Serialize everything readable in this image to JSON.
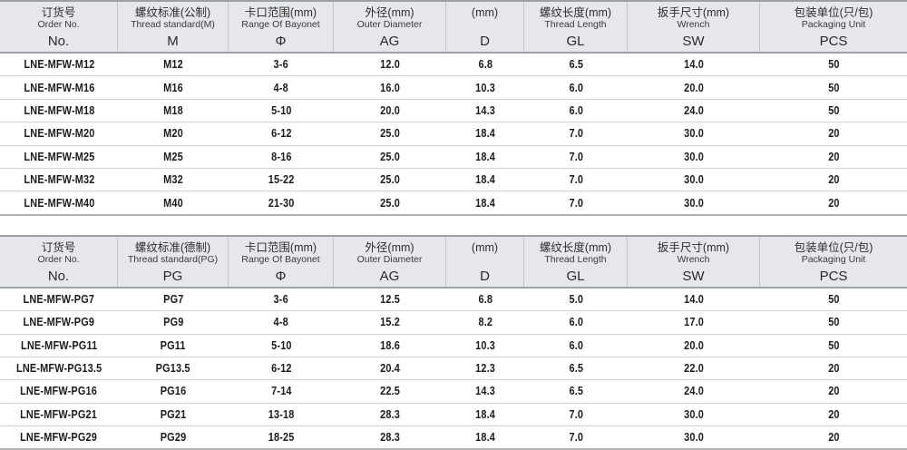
{
  "colors": {
    "header_bg": "#e5e7eb",
    "border_strong": "#9aa0a6",
    "row_divider": "#cdd0d4",
    "table_bottom": "#aeb2b7",
    "text": "#1c1c1c"
  },
  "tables": [
    {
      "id": "metric",
      "columns": [
        {
          "cn": "订货号",
          "en": "Order No.",
          "sym": "No."
        },
        {
          "cn": "螺纹标准(公制)",
          "en": "Thread standard(M)",
          "sym": "M"
        },
        {
          "cn": "卡口范围(mm)",
          "en": "Range Of Bayonet",
          "sym": "Φ"
        },
        {
          "cn": "外径(mm)",
          "en": "Outer Diameter",
          "sym": "AG"
        },
        {
          "cn": "(mm)",
          "en": "",
          "sym": "D"
        },
        {
          "cn": "螺纹长度(mm)",
          "en": "Thread Length",
          "sym": "GL"
        },
        {
          "cn": "扳手尺寸(mm)",
          "en": "Wrench",
          "sym": "SW"
        },
        {
          "cn": "包装单位(只/包)",
          "en": "Packaging Unit",
          "sym": "PCS"
        }
      ],
      "rows": [
        [
          "LNE-MFW-M12",
          "M12",
          "3-6",
          "12.0",
          "6.8",
          "6.5",
          "14.0",
          "50"
        ],
        [
          "LNE-MFW-M16",
          "M16",
          "4-8",
          "16.0",
          "10.3",
          "6.0",
          "20.0",
          "50"
        ],
        [
          "LNE-MFW-M18",
          "M18",
          "5-10",
          "20.0",
          "14.3",
          "6.0",
          "24.0",
          "50"
        ],
        [
          "LNE-MFW-M20",
          "M20",
          "6-12",
          "25.0",
          "18.4",
          "7.0",
          "30.0",
          "20"
        ],
        [
          "LNE-MFW-M25",
          "M25",
          "8-16",
          "25.0",
          "18.4",
          "7.0",
          "30.0",
          "20"
        ],
        [
          "LNE-MFW-M32",
          "M32",
          "15-22",
          "25.0",
          "18.4",
          "7.0",
          "30.0",
          "20"
        ],
        [
          "LNE-MFW-M40",
          "M40",
          "21-30",
          "25.0",
          "18.4",
          "7.0",
          "30.0",
          "20"
        ]
      ]
    },
    {
      "id": "pg",
      "columns": [
        {
          "cn": "订货号",
          "en": "Order No.",
          "sym": "No."
        },
        {
          "cn": "螺纹标准(德制)",
          "en": "Thread standard(PG)",
          "sym": "PG"
        },
        {
          "cn": "卡口范围(mm)",
          "en": "Range Of Bayonet",
          "sym": "Φ"
        },
        {
          "cn": "外径(mm)",
          "en": "Outer Diameter",
          "sym": "AG"
        },
        {
          "cn": "(mm)",
          "en": "",
          "sym": "D"
        },
        {
          "cn": "螺纹长度(mm)",
          "en": "Thread Length",
          "sym": "GL"
        },
        {
          "cn": "扳手尺寸(mm)",
          "en": "Wrench",
          "sym": "SW"
        },
        {
          "cn": "包装单位(只/包)",
          "en": "Packaging Unit",
          "sym": "PCS"
        }
      ],
      "rows": [
        [
          "LNE-MFW-PG7",
          "PG7",
          "3-6",
          "12.5",
          "6.8",
          "5.0",
          "14.0",
          "50"
        ],
        [
          "LNE-MFW-PG9",
          "PG9",
          "4-8",
          "15.2",
          "8.2",
          "6.0",
          "17.0",
          "50"
        ],
        [
          "LNE-MFW-PG11",
          "PG11",
          "5-10",
          "18.6",
          "10.3",
          "6.0",
          "20.0",
          "50"
        ],
        [
          "LNE-MFW-PG13.5",
          "PG13.5",
          "6-12",
          "20.4",
          "12.3",
          "6.5",
          "22.0",
          "20"
        ],
        [
          "LNE-MFW-PG16",
          "PG16",
          "7-14",
          "22.5",
          "14.3",
          "6.5",
          "24.0",
          "20"
        ],
        [
          "LNE-MFW-PG21",
          "PG21",
          "13-18",
          "28.3",
          "18.4",
          "7.0",
          "30.0",
          "20"
        ],
        [
          "LNE-MFW-PG29",
          "PG29",
          "18-25",
          "28.3",
          "18.4",
          "7.0",
          "30.0",
          "20"
        ]
      ]
    }
  ]
}
